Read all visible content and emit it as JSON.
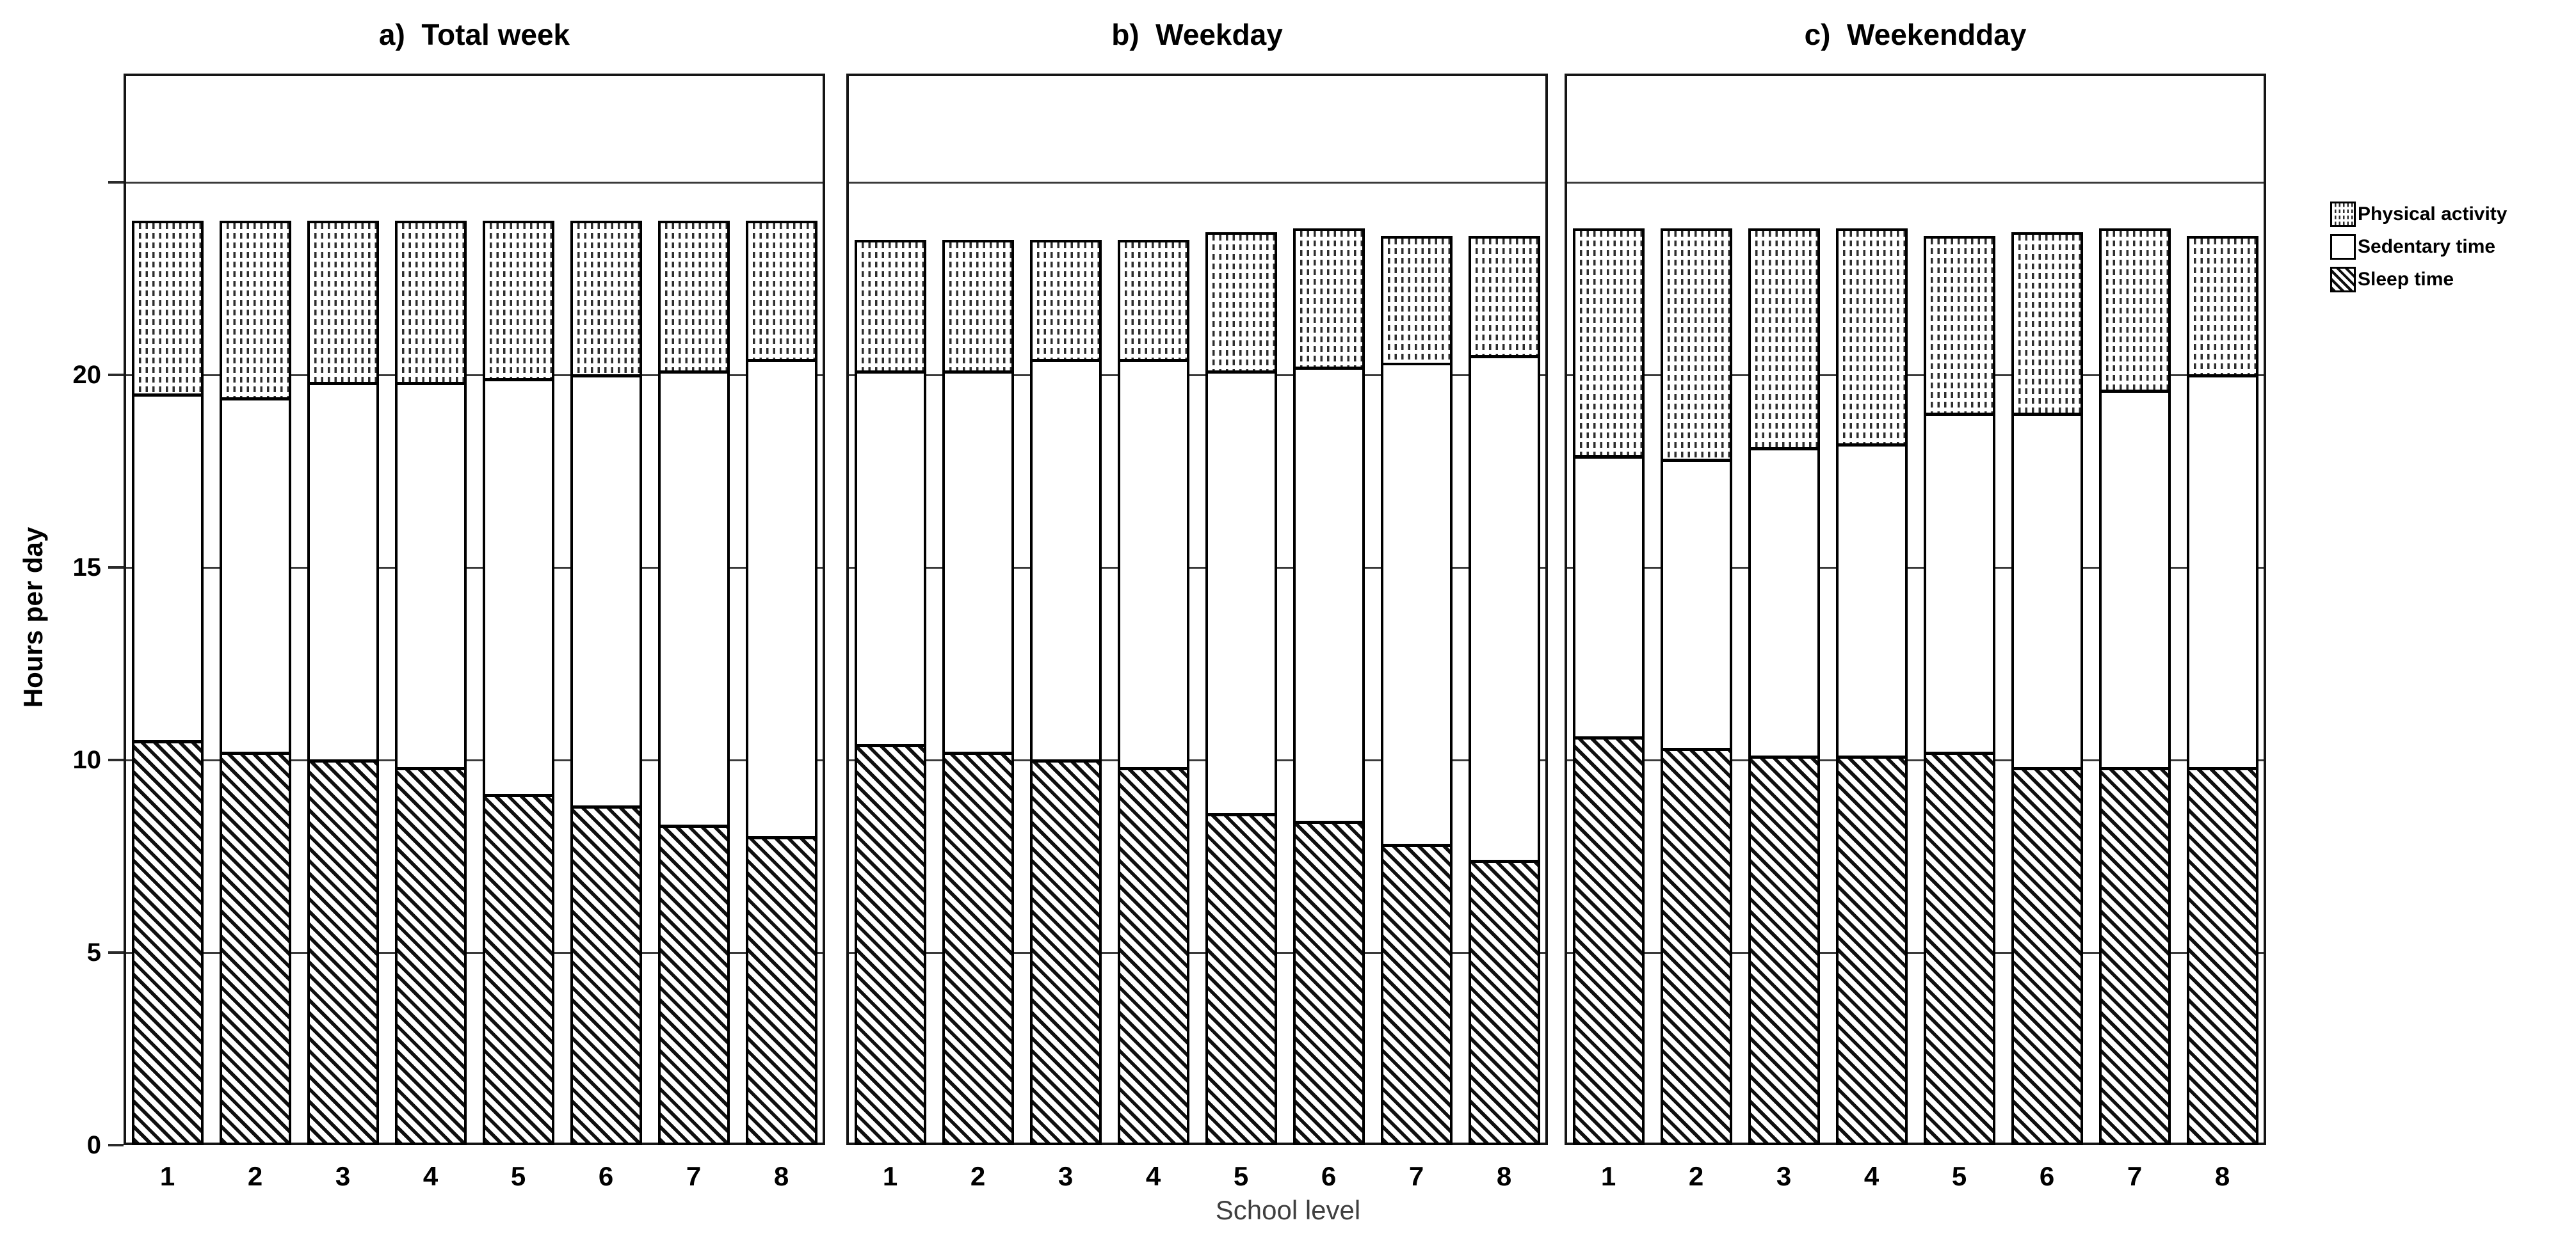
{
  "figure": {
    "panel_titles": [
      "a)  Total week",
      "b)  Weekday",
      "c)  Weekendday"
    ],
    "y_axis": {
      "title": "Hours per day",
      "ticks": [
        {
          "value": 0,
          "label": "0"
        },
        {
          "value": 5,
          "label": "5"
        },
        {
          "value": 10,
          "label": "10"
        },
        {
          "value": 15,
          "label": "15"
        },
        {
          "value": 20,
          "label": "20"
        },
        {
          "value": 25,
          "label": ""
        }
      ],
      "gridlines_at": [
        5,
        10,
        15,
        20,
        25
      ]
    },
    "x_axis": {
      "title": "School level",
      "categories": [
        "1",
        "2",
        "3",
        "4",
        "5",
        "6",
        "7",
        "8"
      ]
    },
    "legend": {
      "position": "right",
      "items": [
        {
          "label": "Physical activity",
          "pattern": "dots"
        },
        {
          "label": "Sedentary time",
          "pattern": "plain"
        },
        {
          "label": "Sleep time",
          "pattern": "hatch"
        }
      ]
    },
    "colors": {
      "ink": "#000000",
      "grid": "#3a3a3a",
      "x_axis_title_text": "#3f3f3f",
      "background": "#ffffff"
    }
  },
  "chart_data": [
    {
      "type": "bar",
      "stacked": true,
      "title": "a)  Total week",
      "xlabel": "School level",
      "ylabel": "Hours per day",
      "ylim": [
        0,
        25
      ],
      "grid": true,
      "legend_position": "right",
      "categories": [
        "1",
        "2",
        "3",
        "4",
        "5",
        "6",
        "7",
        "8"
      ],
      "series": [
        {
          "name": "Sleep time",
          "pattern": "hatch",
          "values": [
            10.5,
            10.2,
            10.0,
            9.8,
            9.1,
            8.8,
            8.3,
            8.0
          ]
        },
        {
          "name": "Sedentary time",
          "pattern": "plain",
          "values": [
            9.0,
            9.2,
            9.8,
            10.0,
            10.8,
            11.2,
            11.8,
            12.4
          ]
        },
        {
          "name": "Physical activity",
          "pattern": "dots",
          "values": [
            4.5,
            4.6,
            4.2,
            4.2,
            4.1,
            4.0,
            3.9,
            3.6
          ]
        }
      ],
      "totals": [
        24.0,
        24.0,
        24.0,
        24.0,
        24.0,
        24.0,
        24.0,
        24.0
      ]
    },
    {
      "type": "bar",
      "stacked": true,
      "title": "b)  Weekday",
      "xlabel": "School level",
      "ylabel": "Hours per day",
      "ylim": [
        0,
        25
      ],
      "grid": true,
      "legend_position": "right",
      "categories": [
        "1",
        "2",
        "3",
        "4",
        "5",
        "6",
        "7",
        "8"
      ],
      "series": [
        {
          "name": "Sleep time",
          "pattern": "hatch",
          "values": [
            10.4,
            10.2,
            10.0,
            9.8,
            8.6,
            8.4,
            7.8,
            7.4
          ]
        },
        {
          "name": "Sedentary time",
          "pattern": "plain",
          "values": [
            9.7,
            9.9,
            10.4,
            10.6,
            11.5,
            11.8,
            12.5,
            13.1
          ]
        },
        {
          "name": "Physical activity",
          "pattern": "dots",
          "values": [
            3.4,
            3.4,
            3.1,
            3.1,
            3.6,
            3.6,
            3.3,
            3.1
          ]
        }
      ],
      "totals": [
        23.5,
        23.5,
        23.5,
        23.5,
        23.7,
        23.8,
        23.6,
        23.6
      ]
    },
    {
      "type": "bar",
      "stacked": true,
      "title": "c)  Weekendday",
      "xlabel": "School level",
      "ylabel": "Hours per day",
      "ylim": [
        0,
        25
      ],
      "grid": true,
      "legend_position": "right",
      "categories": [
        "1",
        "2",
        "3",
        "4",
        "5",
        "6",
        "7",
        "8"
      ],
      "series": [
        {
          "name": "Sleep time",
          "pattern": "hatch",
          "values": [
            10.6,
            10.3,
            10.1,
            10.1,
            10.2,
            9.8,
            9.8,
            9.8
          ]
        },
        {
          "name": "Sedentary time",
          "pattern": "plain",
          "values": [
            7.3,
            7.5,
            8.0,
            8.1,
            8.8,
            9.2,
            9.8,
            10.2
          ]
        },
        {
          "name": "Physical activity",
          "pattern": "dots",
          "values": [
            5.9,
            6.0,
            5.7,
            5.6,
            4.6,
            4.7,
            4.2,
            3.6
          ]
        }
      ],
      "totals": [
        23.8,
        23.8,
        23.8,
        23.8,
        23.6,
        23.7,
        23.8,
        23.6
      ]
    }
  ]
}
